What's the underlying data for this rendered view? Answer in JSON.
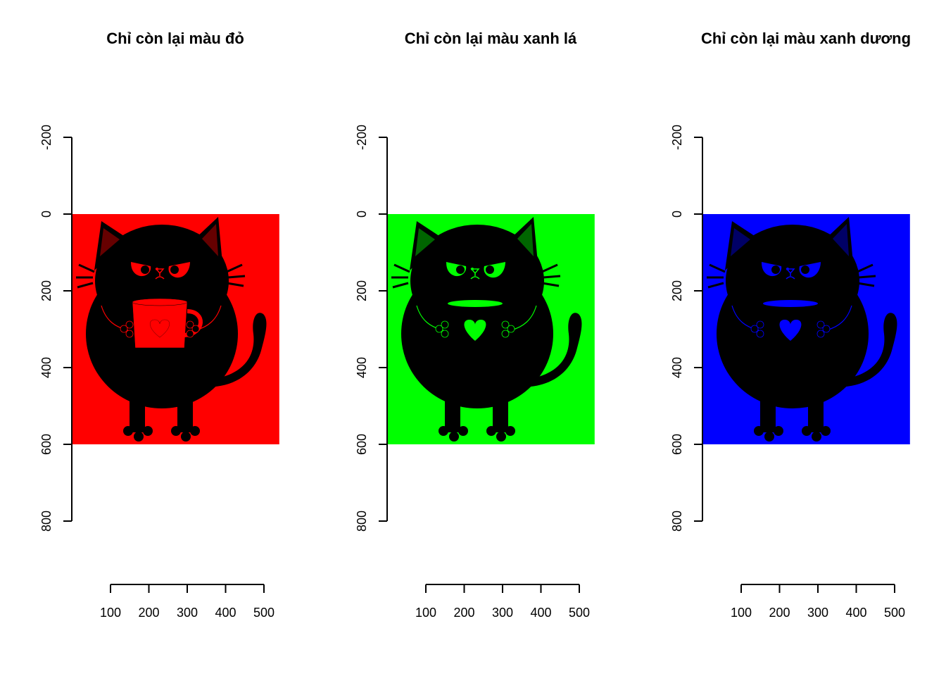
{
  "chart_data": [
    {
      "type": "image",
      "title": "Chỉ còn lại màu đỏ",
      "channel": "red",
      "channel_color": "#ff0000",
      "x_ticks": [
        100,
        200,
        300,
        400,
        500
      ],
      "y_ticks": [
        -200,
        0,
        200,
        400,
        600,
        800
      ],
      "image_extent": {
        "x": [
          0,
          540
        ],
        "y": [
          0,
          600
        ]
      },
      "mug_color": "#ff0000",
      "mug_visible": true
    },
    {
      "type": "image",
      "title": "Chỉ còn lại màu xanh lá",
      "channel": "green",
      "channel_color": "#00ff00",
      "x_ticks": [
        100,
        200,
        300,
        400,
        500
      ],
      "y_ticks": [
        -200,
        0,
        200,
        400,
        600,
        800
      ],
      "image_extent": {
        "x": [
          0,
          540
        ],
        "y": [
          0,
          600
        ]
      },
      "mug_color": "#00ff00",
      "mug_visible": false
    },
    {
      "type": "image",
      "title": "Chỉ còn lại màu xanh dương",
      "channel": "blue",
      "channel_color": "#0000ff",
      "x_ticks": [
        100,
        200,
        300,
        400,
        500
      ],
      "y_ticks": [
        -200,
        0,
        200,
        400,
        600,
        800
      ],
      "image_extent": {
        "x": [
          0,
          540
        ],
        "y": [
          0,
          600
        ]
      },
      "mug_color": "#0000ff",
      "mug_visible": false
    }
  ]
}
